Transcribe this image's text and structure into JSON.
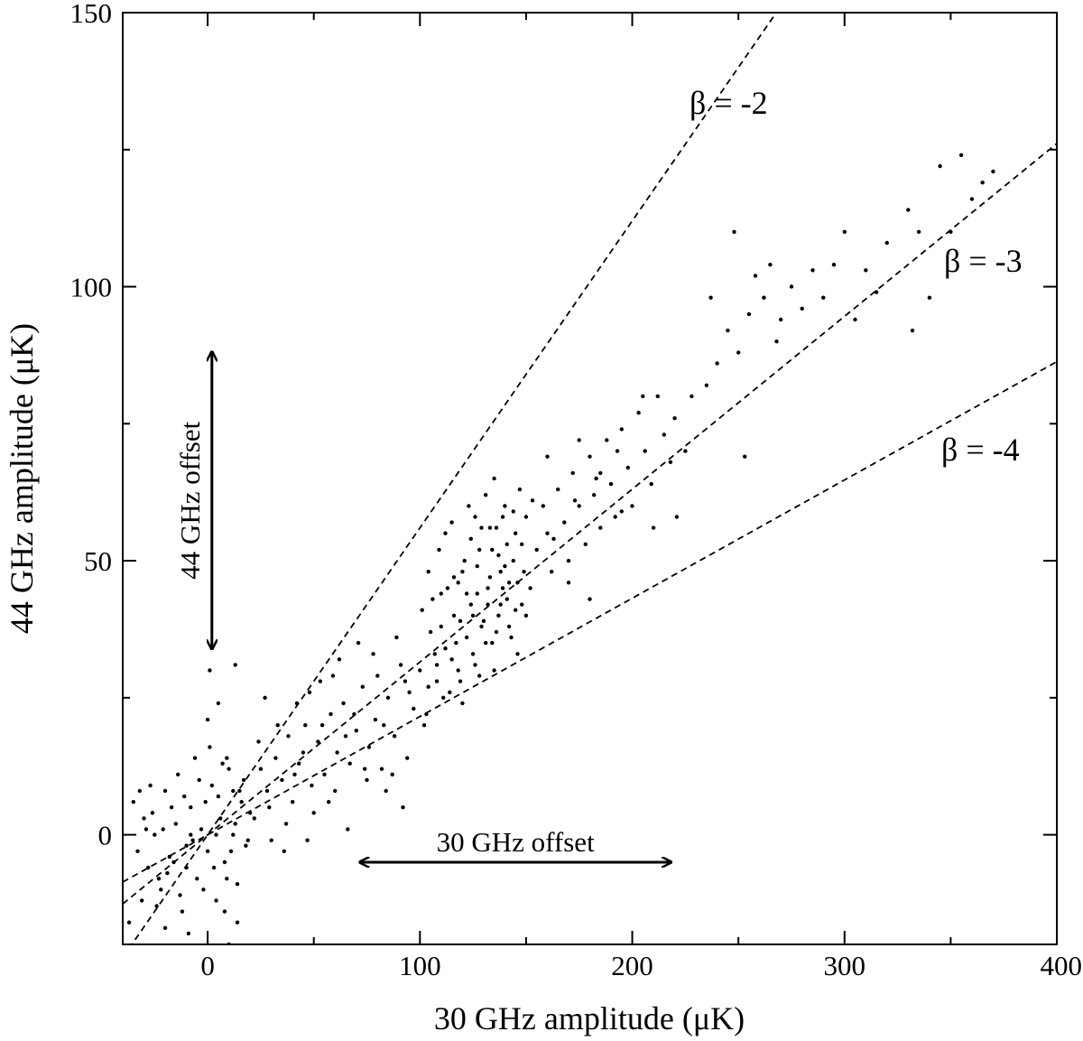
{
  "chart_data": {
    "type": "scatter",
    "xlabel": "30 GHz amplitude (μK)",
    "ylabel": "44 GHz amplitude (μK)",
    "xlim": [
      -40,
      400
    ],
    "ylim": [
      -20,
      150
    ],
    "x_ticks": [
      0,
      100,
      200,
      300,
      400
    ],
    "x_tick_labels": [
      "0",
      "100",
      "200",
      "300",
      "400"
    ],
    "y_ticks": [
      0,
      50,
      100,
      150
    ],
    "y_tick_labels": [
      "0",
      "50",
      "100",
      "150"
    ],
    "grid": false,
    "lines": [
      {
        "label": "β = -2",
        "slope": 0.56,
        "style": "dashed"
      },
      {
        "label": "β = -3",
        "slope": 0.3153,
        "style": "dashed"
      },
      {
        "label": "β = -4",
        "slope": 0.2158,
        "style": "dashed"
      }
    ],
    "annotations": {
      "x_offset": {
        "label": "30 GHz offset",
        "from": 72,
        "to": 218,
        "y": -5
      },
      "y_offset": {
        "label": "44 GHz offset",
        "x": 2,
        "from": 34,
        "to": 88
      }
    },
    "points": [
      [
        -35,
        6
      ],
      [
        -30,
        3
      ],
      [
        -28,
        -6
      ],
      [
        -25,
        0
      ],
      [
        -22,
        -10
      ],
      [
        -20,
        8
      ],
      [
        -18,
        -4
      ],
      [
        -15,
        2
      ],
      [
        -12,
        -14
      ],
      [
        -10,
        -2
      ],
      [
        -8,
        5
      ],
      [
        -5,
        -8
      ],
      [
        -3,
        1
      ],
      [
        0,
        -3
      ],
      [
        2,
        9
      ],
      [
        4,
        -12
      ],
      [
        6,
        3
      ],
      [
        8,
        -5
      ],
      [
        10,
        12
      ],
      [
        12,
        0
      ],
      [
        14,
        -16
      ],
      [
        16,
        6
      ],
      [
        18,
        -2
      ],
      [
        20,
        4
      ],
      [
        -33,
        -3
      ],
      [
        -27,
        9
      ],
      [
        -24,
        -13
      ],
      [
        -19,
        -7
      ],
      [
        -14,
        11
      ],
      [
        -9,
        -18
      ],
      [
        -6,
        14
      ],
      [
        -2,
        -10
      ],
      [
        1,
        16
      ],
      [
        5,
        7
      ],
      [
        9,
        -8
      ],
      [
        13,
        2
      ],
      [
        17,
        10
      ],
      [
        -31,
        -12
      ],
      [
        -26,
        4
      ],
      [
        -21,
        1
      ],
      [
        -16,
        -5
      ],
      [
        -11,
        7
      ],
      [
        -7,
        -1
      ],
      [
        -4,
        10
      ],
      [
        3,
        -6
      ],
      [
        7,
        13
      ],
      [
        11,
        -3
      ],
      [
        15,
        8
      ],
      [
        19,
        -1
      ],
      [
        -29,
        1
      ],
      [
        -23,
        -8
      ],
      [
        -17,
        5
      ],
      [
        -13,
        -11
      ],
      [
        -8,
        0
      ],
      [
        -1,
        6
      ],
      [
        4,
        0
      ],
      [
        8,
        -14
      ],
      [
        12,
        8
      ],
      [
        -20,
        -17
      ],
      [
        -10,
        -6
      ],
      [
        0,
        21
      ],
      [
        5,
        24
      ],
      [
        10,
        -20
      ],
      [
        -37,
        -16
      ],
      [
        -32,
        8
      ],
      [
        1,
        30
      ],
      [
        13,
        31
      ],
      [
        -5,
        -21
      ],
      [
        9,
        14
      ],
      [
        14,
        -9
      ],
      [
        22,
        3
      ],
      [
        25,
        12
      ],
      [
        28,
        8
      ],
      [
        30,
        -1
      ],
      [
        32,
        14
      ],
      [
        35,
        10
      ],
      [
        38,
        18
      ],
      [
        40,
        6
      ],
      [
        43,
        13
      ],
      [
        46,
        20
      ],
      [
        49,
        9
      ],
      [
        52,
        17
      ],
      [
        55,
        11
      ],
      [
        58,
        22
      ],
      [
        61,
        15
      ],
      [
        64,
        24
      ],
      [
        67,
        13
      ],
      [
        70,
        19
      ],
      [
        73,
        27
      ],
      [
        76,
        16
      ],
      [
        79,
        21
      ],
      [
        82,
        12
      ],
      [
        85,
        25
      ],
      [
        88,
        18
      ],
      [
        91,
        31
      ],
      [
        94,
        14
      ],
      [
        97,
        23
      ],
      [
        24,
        17
      ],
      [
        29,
        5
      ],
      [
        33,
        20
      ],
      [
        37,
        2
      ],
      [
        42,
        24
      ],
      [
        47,
        -1
      ],
      [
        53,
        28
      ],
      [
        57,
        6
      ],
      [
        62,
        32
      ],
      [
        66,
        1
      ],
      [
        71,
        35
      ],
      [
        75,
        10
      ],
      [
        80,
        29
      ],
      [
        84,
        8
      ],
      [
        89,
        36
      ],
      [
        92,
        5
      ],
      [
        95,
        26
      ],
      [
        41,
        11
      ],
      [
        45,
        15
      ],
      [
        50,
        4
      ],
      [
        54,
        20
      ],
      [
        60,
        8
      ],
      [
        65,
        18
      ],
      [
        69,
        22
      ],
      [
        74,
        12
      ],
      [
        78,
        33
      ],
      [
        83,
        20
      ],
      [
        87,
        11
      ],
      [
        93,
        28
      ],
      [
        27,
        25
      ],
      [
        36,
        -3
      ],
      [
        48,
        26
      ],
      [
        59,
        29
      ],
      [
        100,
        30
      ],
      [
        103,
        22
      ],
      [
        105,
        37
      ],
      [
        108,
        28
      ],
      [
        110,
        44
      ],
      [
        112,
        34
      ],
      [
        114,
        26
      ],
      [
        116,
        40
      ],
      [
        118,
        30
      ],
      [
        120,
        48
      ],
      [
        122,
        36
      ],
      [
        124,
        42
      ],
      [
        126,
        31
      ],
      [
        128,
        52
      ],
      [
        130,
        39
      ],
      [
        132,
        45
      ],
      [
        134,
        35
      ],
      [
        136,
        56
      ],
      [
        138,
        42
      ],
      [
        140,
        49
      ],
      [
        142,
        38
      ],
      [
        144,
        59
      ],
      [
        146,
        46
      ],
      [
        148,
        53
      ],
      [
        150,
        40
      ],
      [
        101,
        41
      ],
      [
        104,
        48
      ],
      [
        107,
        33
      ],
      [
        109,
        52
      ],
      [
        111,
        25
      ],
      [
        113,
        45
      ],
      [
        115,
        57
      ],
      [
        117,
        35
      ],
      [
        119,
        28
      ],
      [
        121,
        50
      ],
      [
        123,
        60
      ],
      [
        125,
        33
      ],
      [
        127,
        44
      ],
      [
        129,
        38
      ],
      [
        131,
        62
      ],
      [
        133,
        47
      ],
      [
        135,
        30
      ],
      [
        137,
        51
      ],
      [
        139,
        58
      ],
      [
        141,
        43
      ],
      [
        143,
        36
      ],
      [
        145,
        55
      ],
      [
        147,
        63
      ],
      [
        149,
        48
      ],
      [
        102,
        20
      ],
      [
        106,
        43
      ],
      [
        119,
        39
      ],
      [
        124,
        54
      ],
      [
        128,
        29
      ],
      [
        133,
        56
      ],
      [
        137,
        40
      ],
      [
        141,
        53
      ],
      [
        146,
        33
      ],
      [
        150,
        58
      ],
      [
        108,
        31
      ],
      [
        112,
        55
      ],
      [
        116,
        47
      ],
      [
        120,
        24
      ],
      [
        126,
        58
      ],
      [
        131,
        35
      ],
      [
        135,
        65
      ],
      [
        139,
        45
      ],
      [
        144,
        50
      ],
      [
        148,
        42
      ],
      [
        110,
        38
      ],
      [
        118,
        46
      ],
      [
        127,
        49
      ],
      [
        134,
        52
      ],
      [
        142,
        46
      ],
      [
        104,
        27
      ],
      [
        115,
        32
      ],
      [
        122,
        44
      ],
      [
        129,
        56
      ],
      [
        136,
        37
      ],
      [
        140,
        60
      ],
      [
        145,
        41
      ],
      [
        125,
        40
      ],
      [
        132,
        42
      ],
      [
        138,
        48
      ],
      [
        152,
        45
      ],
      [
        155,
        52
      ],
      [
        158,
        60
      ],
      [
        160,
        55
      ],
      [
        162,
        48
      ],
      [
        165,
        63
      ],
      [
        168,
        57
      ],
      [
        170,
        50
      ],
      [
        172,
        66
      ],
      [
        175,
        60
      ],
      [
        178,
        53
      ],
      [
        180,
        69
      ],
      [
        182,
        62
      ],
      [
        185,
        56
      ],
      [
        188,
        72
      ],
      [
        190,
        64
      ],
      [
        192,
        58
      ],
      [
        195,
        74
      ],
      [
        198,
        67
      ],
      [
        200,
        60
      ],
      [
        203,
        77
      ],
      [
        206,
        70
      ],
      [
        209,
        64
      ],
      [
        212,
        80
      ],
      [
        215,
        73
      ],
      [
        218,
        68
      ],
      [
        160,
        69
      ],
      [
        170,
        46
      ],
      [
        175,
        72
      ],
      [
        180,
        43
      ],
      [
        185,
        66
      ],
      [
        195,
        59
      ],
      [
        205,
        80
      ],
      [
        210,
        56
      ],
      [
        220,
        76
      ],
      [
        225,
        70
      ],
      [
        153,
        61
      ],
      [
        163,
        54
      ],
      [
        173,
        61
      ],
      [
        183,
        65
      ],
      [
        193,
        70
      ],
      [
        228,
        80
      ],
      [
        235,
        82
      ],
      [
        240,
        86
      ],
      [
        245,
        92
      ],
      [
        250,
        88
      ],
      [
        255,
        95
      ],
      [
        258,
        102
      ],
      [
        262,
        98
      ],
      [
        265,
        104
      ],
      [
        270,
        94
      ],
      [
        275,
        100
      ],
      [
        280,
        96
      ],
      [
        285,
        103
      ],
      [
        290,
        98
      ],
      [
        295,
        104
      ],
      [
        300,
        110
      ],
      [
        305,
        94
      ],
      [
        310,
        103
      ],
      [
        315,
        99
      ],
      [
        320,
        108
      ],
      [
        330,
        114
      ],
      [
        335,
        110
      ],
      [
        340,
        98
      ],
      [
        345,
        122
      ],
      [
        350,
        110
      ],
      [
        355,
        124
      ],
      [
        360,
        116
      ],
      [
        365,
        119
      ],
      [
        370,
        121
      ],
      [
        253,
        69
      ],
      [
        221,
        58
      ],
      [
        332,
        92
      ],
      [
        248,
        110
      ],
      [
        237,
        98
      ],
      [
        268,
        90
      ]
    ]
  }
}
